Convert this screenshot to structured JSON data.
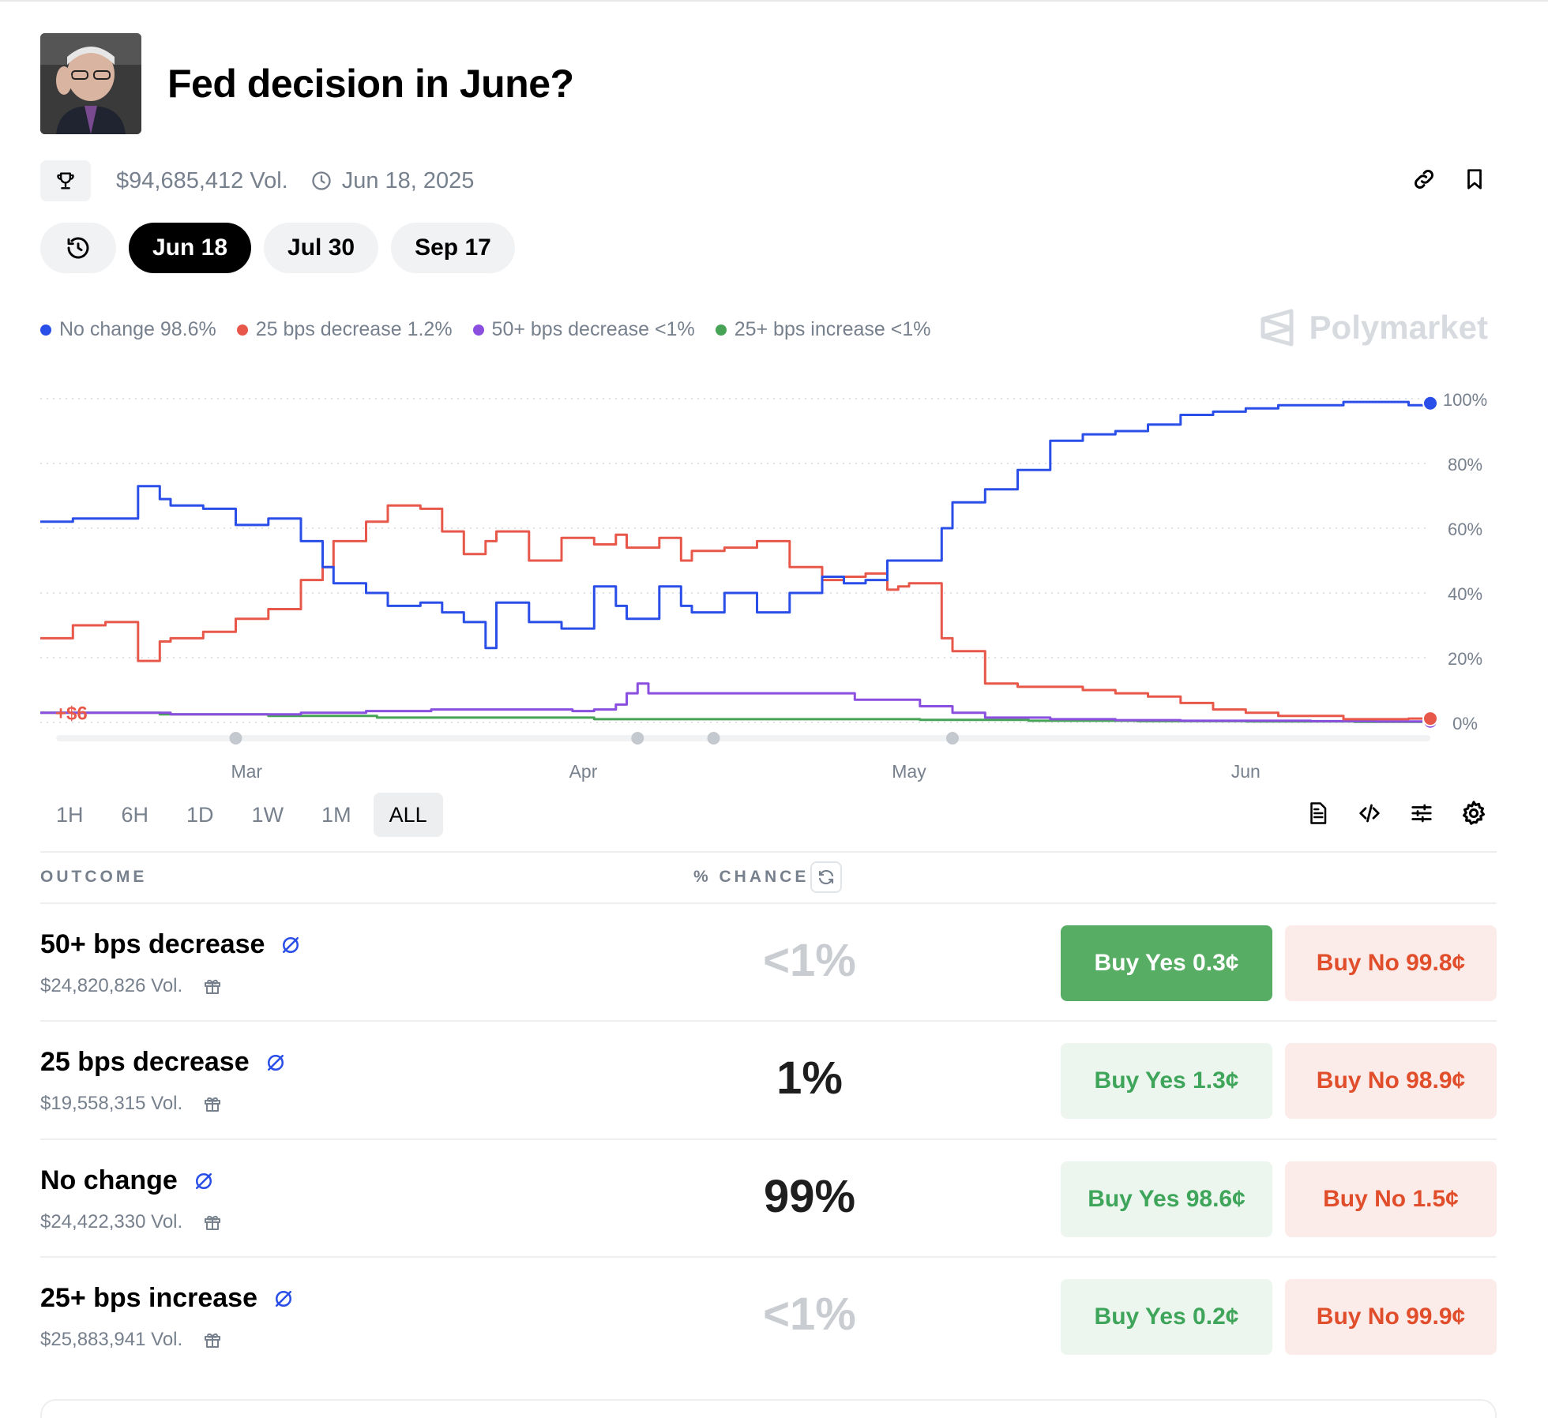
{
  "title": "Fed decision in June?",
  "meta": {
    "volume": "$94,685,412 Vol.",
    "date": "Jun 18, 2025"
  },
  "date_tabs": [
    "Jun 18",
    "Jul 30",
    "Sep 17"
  ],
  "watermark": "Polymarket",
  "legend": [
    {
      "label": "No change 98.6%",
      "color": "#2a4ee8"
    },
    {
      "label": "25 bps decrease 1.2%",
      "color": "#e8584a"
    },
    {
      "label": "50+ bps decrease <1%",
      "color": "#8b4fe0"
    },
    {
      "label": "25+ bps increase <1%",
      "color": "#47a356"
    }
  ],
  "range_tabs": [
    "1H",
    "6H",
    "1D",
    "1W",
    "1M",
    "ALL"
  ],
  "table": {
    "outcome_header": "OUTCOME",
    "chance_header": "% CHANCE",
    "rows": [
      {
        "name": "50+ bps decrease",
        "volume": "$24,820,826 Vol.",
        "chance": "<1%",
        "yes": "Buy Yes 0.3¢",
        "no": "Buy No 99.8¢"
      },
      {
        "name": "25 bps decrease",
        "volume": "$19,558,315 Vol.",
        "chance": "1%",
        "yes": "Buy Yes 1.3¢",
        "no": "Buy No 98.9¢"
      },
      {
        "name": "No change",
        "volume": "$24,422,330 Vol.",
        "chance": "99%",
        "yes": "Buy Yes 98.6¢",
        "no": "Buy No 1.5¢"
      },
      {
        "name": "25+ bps increase",
        "volume": "$25,883,941 Vol.",
        "chance": "<1%",
        "yes": "Buy Yes 0.2¢",
        "no": "Buy No 99.9¢"
      }
    ]
  },
  "chart_data": {
    "type": "line",
    "y_ticks": [
      "100%",
      "80%",
      "60%",
      "40%",
      "20%",
      "0%"
    ],
    "ylim": [
      0,
      100
    ],
    "x_ticks": [
      {
        "label": "Mar",
        "day": 28
      },
      {
        "label": "Apr",
        "day": 59
      },
      {
        "label": "May",
        "day": 89
      },
      {
        "label": "Jun",
        "day": 120
      }
    ],
    "xlim_days": [
      9,
      137
    ],
    "annotation": "+$6",
    "event_marker_days": [
      27,
      64,
      71,
      93
    ],
    "series": [
      {
        "name": "No change",
        "color": "#2a4ee8",
        "days": [
          9,
          12,
          15,
          18,
          20,
          21,
          24,
          27,
          30,
          33,
          35,
          36,
          39,
          41,
          44,
          46,
          48,
          50,
          51,
          54,
          57,
          60,
          62,
          63,
          66,
          68,
          69,
          72,
          75,
          78,
          81,
          83,
          85,
          87,
          88,
          89,
          92,
          93,
          96,
          99,
          102,
          105,
          108,
          111,
          114,
          117,
          120,
          123,
          126,
          129,
          132,
          135,
          137
        ],
        "values": [
          62,
          63,
          63,
          73,
          69,
          67,
          66,
          61,
          63,
          56,
          48,
          43,
          40,
          36,
          37,
          34,
          31,
          23,
          37,
          31,
          29,
          42,
          36,
          32,
          42,
          36,
          34,
          40,
          34,
          40,
          45,
          43,
          44,
          50,
          50,
          50,
          60,
          68,
          72,
          78,
          87,
          89,
          90,
          92,
          95,
          96,
          97,
          98,
          98,
          99,
          99,
          98,
          98.6
        ]
      },
      {
        "name": "25 bps decrease",
        "color": "#e8584a",
        "days": [
          9,
          12,
          15,
          18,
          20,
          21,
          24,
          27,
          30,
          33,
          35,
          36,
          39,
          41,
          44,
          46,
          48,
          50,
          51,
          54,
          57,
          60,
          62,
          63,
          66,
          68,
          69,
          72,
          75,
          78,
          81,
          83,
          85,
          87,
          88,
          89,
          92,
          93,
          96,
          99,
          102,
          105,
          108,
          111,
          114,
          117,
          120,
          123,
          126,
          129,
          132,
          135,
          137
        ],
        "values": [
          26,
          30,
          31,
          19,
          25,
          26,
          28,
          32,
          35,
          44,
          48,
          56,
          62,
          67,
          66,
          59,
          52,
          56,
          59,
          50,
          57,
          55,
          58,
          54,
          57,
          50,
          53,
          54,
          56,
          48,
          44,
          45,
          46,
          41,
          42,
          43,
          26,
          22,
          12,
          11,
          11,
          10,
          9,
          8,
          6,
          4,
          3,
          2,
          2,
          1,
          1,
          1.2,
          1.2
        ]
      },
      {
        "name": "50+ bps decrease",
        "color": "#8b4fe0",
        "days": [
          9,
          15,
          21,
          27,
          33,
          39,
          45,
          50,
          54,
          58,
          60,
          62,
          63,
          64,
          65,
          66,
          72,
          78,
          84,
          90,
          93,
          96,
          102,
          108,
          114,
          120,
          126,
          132,
          137
        ],
        "values": [
          3,
          3,
          2.5,
          2.5,
          3,
          3.5,
          4,
          4,
          4,
          3.5,
          4,
          5.5,
          9,
          12,
          9,
          9,
          9,
          9,
          7,
          5,
          3,
          1.5,
          1,
          0.7,
          0.5,
          0.5,
          0.4,
          0.3,
          0.3
        ]
      },
      {
        "name": "25+ bps increase",
        "color": "#47a356",
        "days": [
          9,
          20,
          30,
          40,
          50,
          60,
          70,
          80,
          90,
          100,
          110,
          120,
          130,
          137
        ],
        "values": [
          3,
          2.5,
          2,
          1.5,
          1.5,
          1,
          1,
          1,
          0.8,
          0.5,
          0.4,
          0.3,
          0.2,
          0.2
        ]
      }
    ]
  }
}
